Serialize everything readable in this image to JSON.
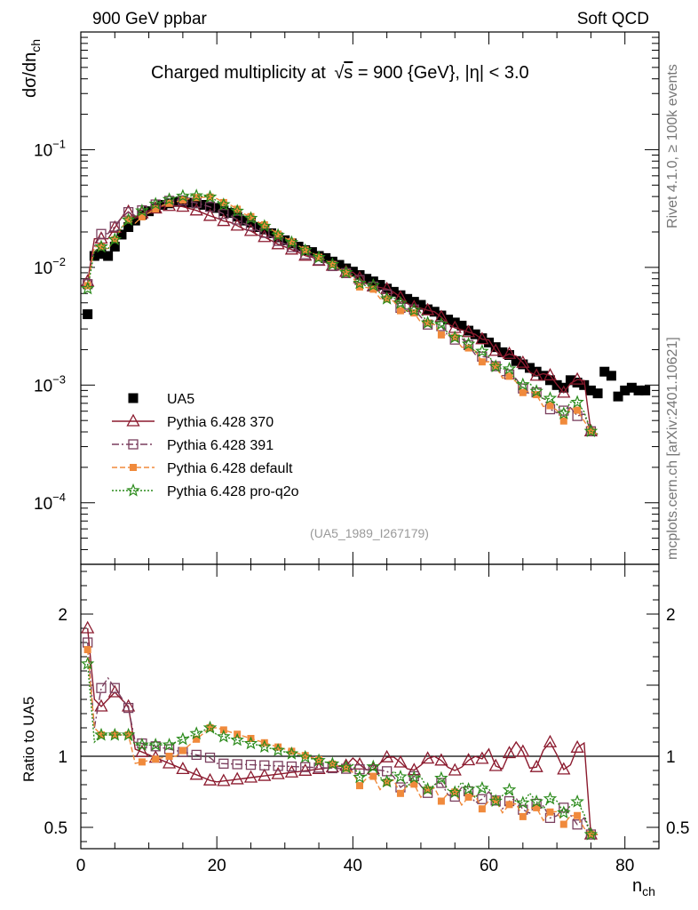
{
  "header": {
    "left": "900 GeV ppbar",
    "right": "Soft QCD"
  },
  "side": {
    "rivet": "Rivet 4.1.0, ≥ 100k events",
    "mcplots": "mcplots.cern.ch [arXiv:2401.10621]"
  },
  "chart_data": {
    "type": "scatter",
    "title_main": "Charged multiplicity at",
    "title_sqrt_s": "s",
    "title_rest": " = 900 {GeV}, |η| < 3.0",
    "ylabel_top": "dσ/dn",
    "ylabel_top_sub": "ch",
    "ylabel_ratio": "Ratio to UA5",
    "xlabel": "n",
    "xlabel_sub": "ch",
    "watermark": "(UA5_1989_I267179)",
    "xlim": [
      0,
      85
    ],
    "ylim_top": [
      3e-05,
      1
    ],
    "ylim_ratio": [
      0.35,
      2.35
    ],
    "x_ticks": [
      0,
      20,
      40,
      60,
      80
    ],
    "y_ticks_top": [
      {
        "value": 0.1,
        "base": "10",
        "exp": "−1"
      },
      {
        "value": 0.01,
        "base": "10",
        "exp": "−2"
      },
      {
        "value": 0.001,
        "base": "10",
        "exp": "−3"
      },
      {
        "value": 0.0001,
        "base": "10",
        "exp": "−4"
      }
    ],
    "y_ticks_ratio": [
      {
        "value": 2,
        "label": "2"
      },
      {
        "value": 1,
        "label": "1"
      },
      {
        "value": 0.5,
        "label": "0.5"
      }
    ],
    "legend": [
      {
        "name": "UA5",
        "color": "#000000",
        "marker": "square-filled",
        "line": "none"
      },
      {
        "name": "Pythia 6.428 370",
        "color": "#8b1a2e",
        "marker": "triangle-open",
        "line": "solid"
      },
      {
        "name": "Pythia 6.428 391",
        "color": "#7a3f5e",
        "marker": "square-open",
        "line": "dashdot"
      },
      {
        "name": "Pythia 6.428 default",
        "color": "#f08a3c",
        "marker": "square-filled-small",
        "line": "dashed"
      },
      {
        "name": "Pythia 6.428 pro-q2o",
        "color": "#2a8a1a",
        "marker": "star-open",
        "line": "dotted"
      }
    ],
    "data_x": [
      1,
      2,
      3,
      4,
      5,
      6,
      7,
      8,
      9,
      10,
      11,
      12,
      13,
      14,
      15,
      16,
      17,
      18,
      19,
      20,
      21,
      22,
      23,
      24,
      25,
      26,
      27,
      28,
      29,
      30,
      31,
      32,
      33,
      34,
      35,
      36,
      37,
      38,
      39,
      40,
      41,
      42,
      43,
      44,
      45,
      46,
      47,
      48,
      49,
      50,
      51,
      52,
      53,
      54,
      55,
      56,
      57,
      58,
      59,
      60,
      61,
      62,
      63,
      64,
      65,
      66,
      67,
      68,
      69,
      70,
      71,
      72,
      73,
      74,
      75,
      76,
      77,
      78,
      79,
      80,
      81,
      82,
      83
    ],
    "data_y": [
      0.004,
      0.0125,
      0.013,
      0.0125,
      0.015,
      0.019,
      0.022,
      0.025,
      0.028,
      0.03,
      0.032,
      0.034,
      0.035,
      0.036,
      0.036,
      0.0355,
      0.035,
      0.034,
      0.033,
      0.032,
      0.03,
      0.029,
      0.027,
      0.025,
      0.024,
      0.022,
      0.021,
      0.0195,
      0.018,
      0.017,
      0.016,
      0.015,
      0.014,
      0.0135,
      0.0125,
      0.012,
      0.0112,
      0.0105,
      0.0098,
      0.0092,
      0.0086,
      0.008,
      0.0076,
      0.0071,
      0.0066,
      0.0062,
      0.0058,
      0.0054,
      0.0051,
      0.0048,
      0.0044,
      0.0042,
      0.0039,
      0.0036,
      0.0034,
      0.0032,
      0.0029,
      0.0027,
      0.0025,
      0.0023,
      0.0021,
      0.0019,
      0.0018,
      0.0016,
      0.0015,
      0.0014,
      0.0013,
      0.0012,
      0.0011,
      0.001,
      0.00095,
      0.0011,
      0.00105,
      0.001,
      0.0009,
      0.00085,
      0.0013,
      0.0012,
      0.0008,
      0.0009,
      0.00095,
      0.0009,
      0.0009
    ]
  }
}
